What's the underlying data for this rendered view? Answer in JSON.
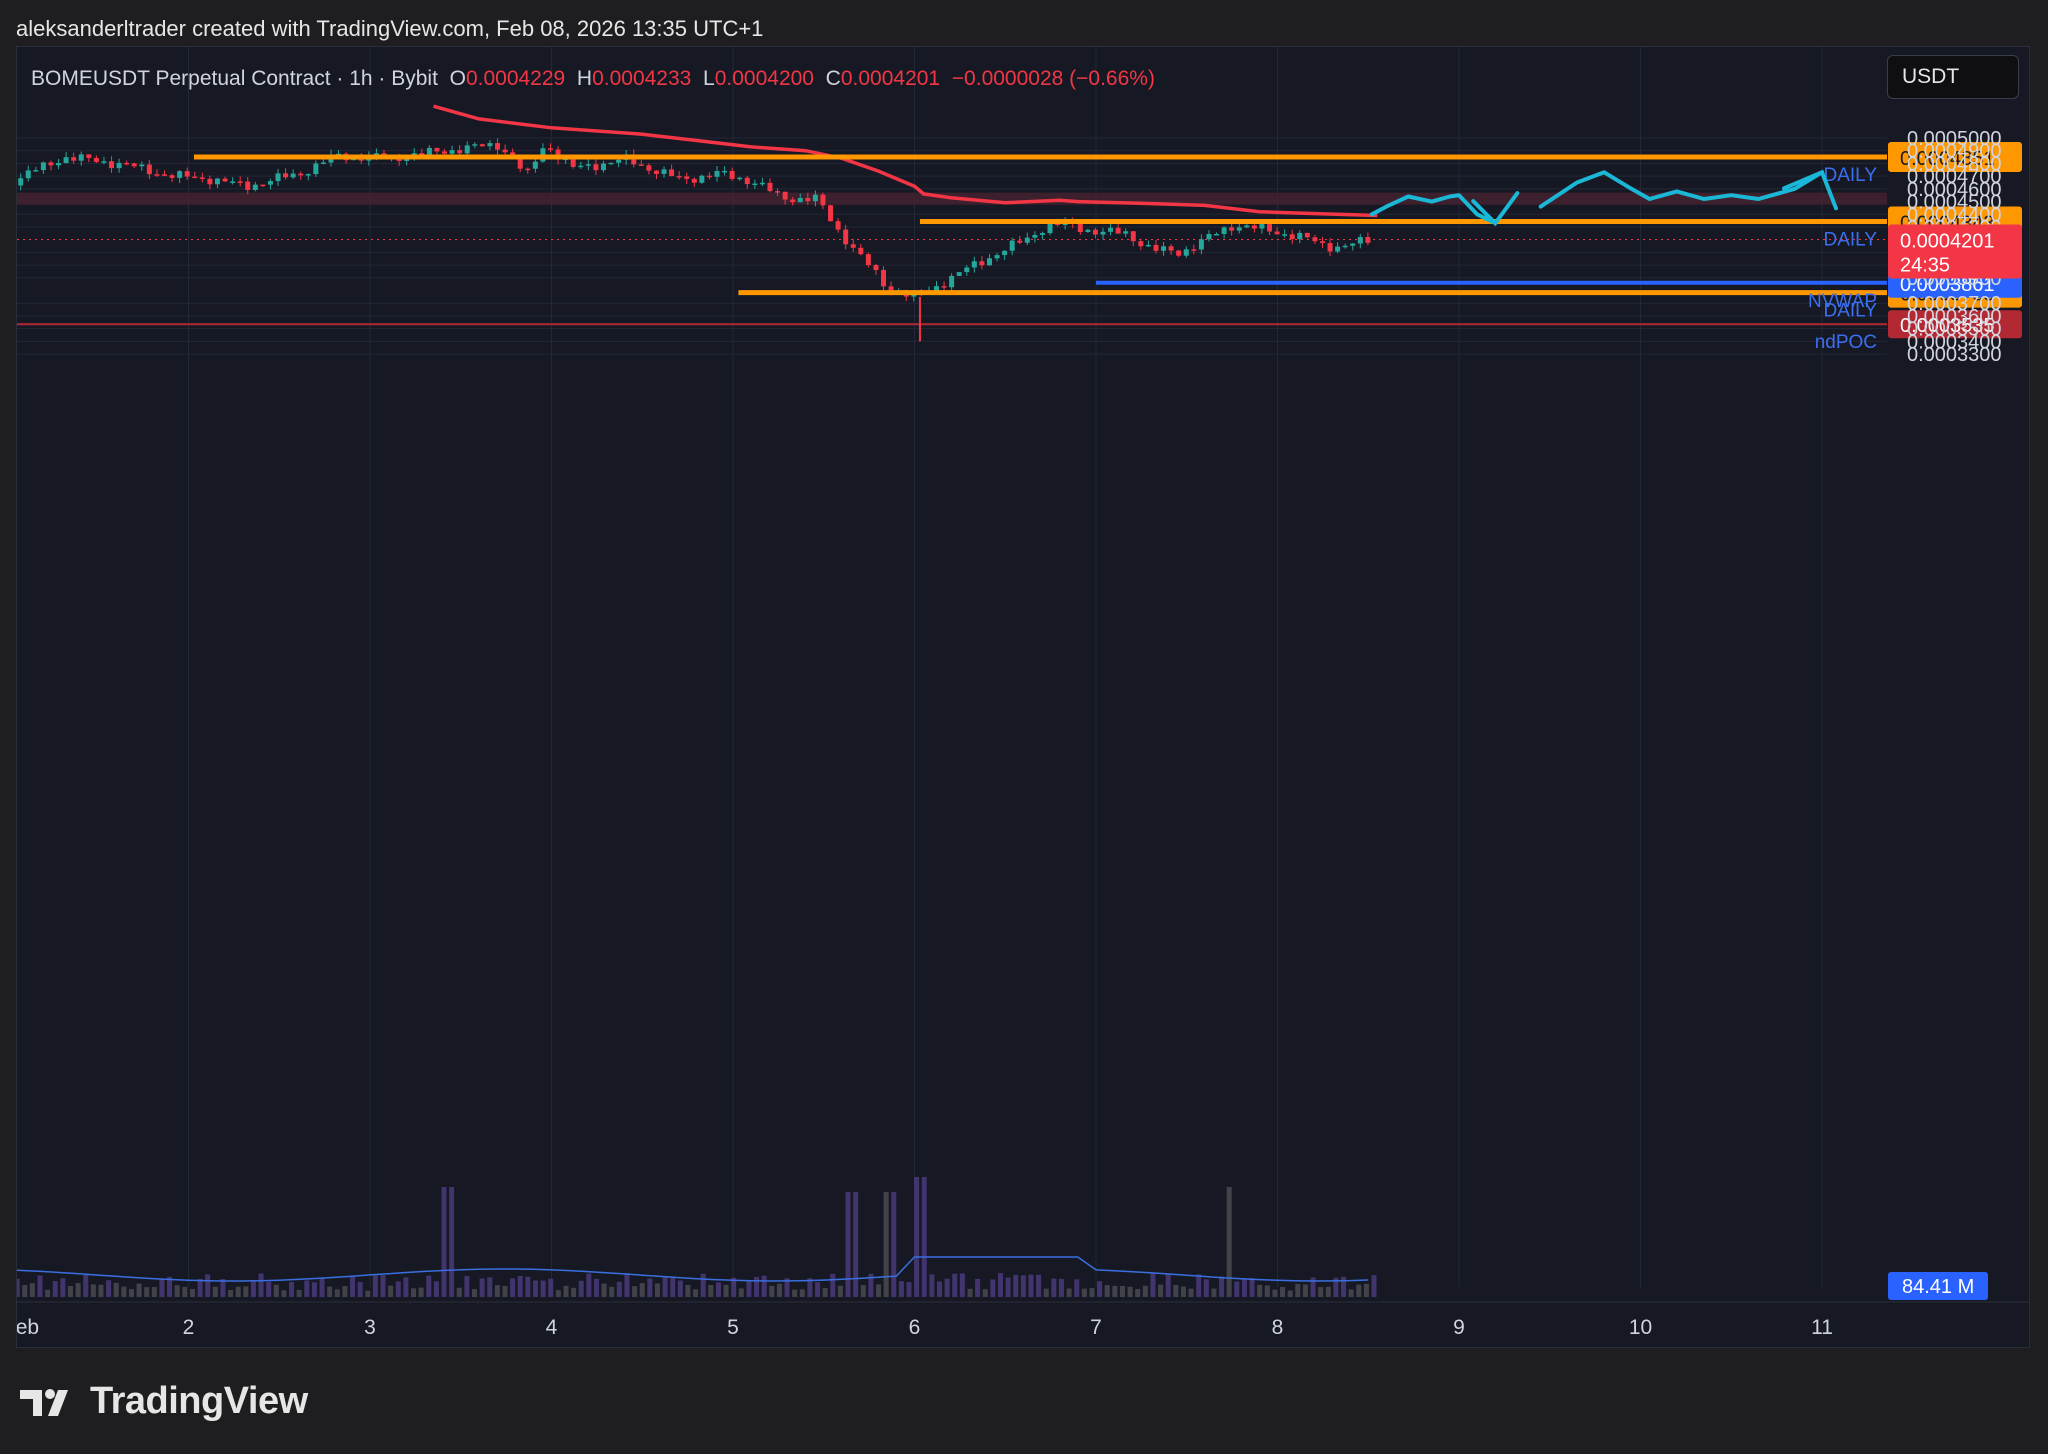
{
  "attribution": "aleksanderltrader created with TradingView.com, Feb 08, 2026 13:35 UTC+1",
  "legend": {
    "symbol": "BOMEUSDT Perpetual Contract · 1h · Bybit",
    "o_label": "O",
    "o_value": "0.0004229",
    "h_label": "H",
    "h_value": "0.0004233",
    "l_label": "L",
    "l_value": "0.0004200",
    "c_label": "C",
    "c_value": "0.0004201",
    "change": "−0.0000028 (−0.66%)"
  },
  "currency_button": "USDT",
  "brand": "TradingView",
  "colors": {
    "up": "#26a69a",
    "down": "#f23645",
    "daily": "#ff9800",
    "vwap_ma": "#f23645",
    "nvwap": "#2962ff",
    "ndpoc": "#b22833",
    "forecast": "#1ab8d6",
    "zone": "#4a2330"
  },
  "chart_data": {
    "type": "candlestick",
    "symbol": "BOMEUSDT",
    "timeframe": "1h",
    "ylim": [
      0.000325,
      0.000518
    ],
    "xlim": [
      1.0,
      11.2
    ],
    "x_ticks": [
      {
        "x": 1,
        "label": "Feb"
      },
      {
        "x": 2,
        "label": "2"
      },
      {
        "x": 3,
        "label": "3"
      },
      {
        "x": 4,
        "label": "4"
      },
      {
        "x": 5,
        "label": "5"
      },
      {
        "x": 6,
        "label": "6"
      },
      {
        "x": 7,
        "label": "7"
      },
      {
        "x": 8,
        "label": "8"
      },
      {
        "x": 9,
        "label": "9"
      },
      {
        "x": 10,
        "label": "10"
      },
      {
        "x": 11,
        "label": "11"
      }
    ],
    "y_ticks": [
      "0.0005000",
      "0.0004900",
      "0.0004800",
      "0.0004700",
      "0.0004600",
      "0.0004500",
      "0.0004400",
      "0.0004300",
      "0.0004100",
      "0.0004000",
      "0.0003900",
      "0.0003700",
      "0.0003600",
      "0.0003500",
      "0.0003400",
      "0.0003300"
    ],
    "y_tick_values": [
      0.0005,
      0.00049,
      0.00048,
      0.00047,
      0.00046,
      0.00045,
      0.00044,
      0.00043,
      0.00041,
      0.0004,
      0.00039,
      0.00037,
      0.00036,
      0.00035,
      0.00034,
      0.00033
    ],
    "price_path": [
      [
        1.0,
        0.000465
      ],
      [
        1.3,
        0.000485
      ],
      [
        1.6,
        0.00048
      ],
      [
        1.9,
        0.00047
      ],
      [
        2.1,
        0.000468
      ],
      [
        2.3,
        0.000462
      ],
      [
        2.6,
        0.000472
      ],
      [
        2.8,
        0.000486
      ],
      [
        3.1,
        0.000484
      ],
      [
        3.4,
        0.00049
      ],
      [
        3.7,
        0.000495
      ],
      [
        3.85,
        0.00047
      ],
      [
        3.95,
        0.000496
      ],
      [
        4.1,
        0.000476
      ],
      [
        4.4,
        0.000483
      ],
      [
        4.7,
        0.000467
      ],
      [
        4.9,
        0.000472
      ],
      [
        5.1,
        0.000466
      ],
      [
        5.25,
        0.000453
      ],
      [
        5.45,
        0.000452
      ],
      [
        5.55,
        0.00043
      ],
      [
        5.7,
        0.000405
      ],
      [
        5.85,
        0.00038
      ],
      [
        6.0,
        0.000375
      ],
      [
        6.1,
        0.000383
      ],
      [
        6.25,
        0.000395
      ],
      [
        6.45,
        0.00041
      ],
      [
        6.6,
        0.00042
      ],
      [
        6.72,
        0.000432
      ],
      [
        6.85,
        0.000431
      ],
      [
        7.0,
        0.000426
      ],
      [
        7.15,
        0.000425
      ],
      [
        7.3,
        0.000412
      ],
      [
        7.45,
        0.00041
      ],
      [
        7.6,
        0.000421
      ],
      [
        7.75,
        0.000432
      ],
      [
        7.9,
        0.000428
      ],
      [
        8.1,
        0.000423
      ],
      [
        8.25,
        0.000415
      ],
      [
        8.35,
        0.000415
      ],
      [
        8.45,
        0.000418
      ],
      [
        8.52,
        0.00042
      ]
    ],
    "ma_line": [
      [
        3.35,
        0.000525
      ],
      [
        3.6,
        0.000515
      ],
      [
        4.0,
        0.000508
      ],
      [
        4.5,
        0.000503
      ],
      [
        4.8,
        0.000498
      ],
      [
        5.1,
        0.000493
      ],
      [
        5.4,
        0.00049
      ],
      [
        5.6,
        0.000484
      ],
      [
        5.8,
        0.000474
      ],
      [
        6.0,
        0.000462
      ],
      [
        6.05,
        0.000456
      ],
      [
        6.2,
        0.000453
      ],
      [
        6.5,
        0.000449
      ],
      [
        6.8,
        0.000451
      ],
      [
        6.9,
        0.00045
      ],
      [
        7.4,
        0.000448
      ],
      [
        7.6,
        0.000447
      ],
      [
        7.9,
        0.000442
      ],
      [
        8.1,
        0.000441
      ],
      [
        8.55,
        0.000439
      ]
    ],
    "daily_levels": [
      {
        "price": 0.0004851,
        "label": "0.0004851",
        "tag": "DAILY",
        "x_start": 2.03
      },
      {
        "price": 0.0004343,
        "label": "0.0004343",
        "tag": "DAILY",
        "x_start": 6.03
      },
      {
        "price": 0.0003783,
        "label": "0.0003783",
        "tag": "DAILY",
        "x_start": 5.03
      }
    ],
    "nvwap": {
      "price": 0.0003861,
      "label": "0.0003861",
      "tag": "NVWAP",
      "x_start": 7.0
    },
    "ndpoc": {
      "price": 0.0003535,
      "label": "0.0003535",
      "tag": "ndPOC"
    },
    "last_price": {
      "price": 0.0004201,
      "label": "0.0004201",
      "countdown": "24:35"
    },
    "resistance_zone": [
      0.0004475,
      0.000457
    ],
    "wick_spike_low": 0.00034,
    "forecast_path": [
      [
        8.52,
        0.00044
      ],
      [
        8.6,
        0.000446
      ],
      [
        8.72,
        0.000454
      ],
      [
        8.85,
        0.00045
      ],
      [
        8.95,
        0.000454
      ],
      [
        9.0,
        0.000455
      ],
      [
        9.1,
        0.00044
      ],
      [
        9.2,
        0.000433
      ]
    ],
    "forecast_path_2": [
      [
        9.45,
        0.000446
      ],
      [
        9.65,
        0.000465
      ],
      [
        9.8,
        0.000473
      ],
      [
        9.95,
        0.00046
      ],
      [
        10.05,
        0.000452
      ],
      [
        10.2,
        0.000458
      ],
      [
        10.35,
        0.000452
      ],
      [
        10.5,
        0.000455
      ],
      [
        10.65,
        0.000452
      ],
      [
        10.85,
        0.00046
      ],
      [
        11.0,
        0.000473
      ]
    ],
    "volume_label": "84.41 M"
  }
}
